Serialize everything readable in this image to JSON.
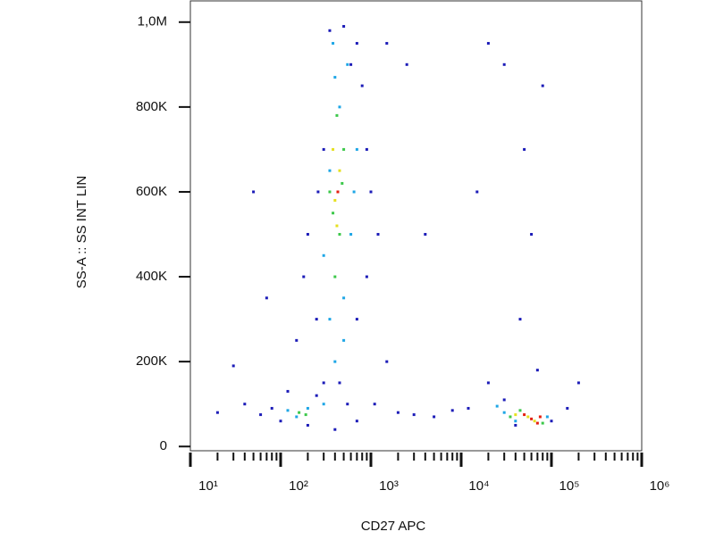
{
  "chart_data": {
    "type": "scatter",
    "xlabel": "CD27 APC",
    "ylabel": "SS-A :: SS INT LIN",
    "xscale": "log",
    "xlim": [
      10,
      1000000
    ],
    "ylim": [
      -10000,
      1050000
    ],
    "xticks": [
      {
        "value": 10,
        "label": "10¹"
      },
      {
        "value": 100,
        "label": "10²"
      },
      {
        "value": 1000,
        "label": "10³"
      },
      {
        "value": 10000,
        "label": "10⁴"
      },
      {
        "value": 100000,
        "label": "10⁵"
      },
      {
        "value": 1000000,
        "label": "10⁶"
      }
    ],
    "yticks": [
      0,
      {
        "value": 200000,
        "label": "200K"
      },
      {
        "value": 400000,
        "label": "400K"
      },
      {
        "value": 600000,
        "label": "600K"
      },
      {
        "value": 800000,
        "label": "800K"
      },
      {
        "value": 1000000,
        "label": "1,0M"
      }
    ],
    "series": [
      {
        "color": "#1c1cb8",
        "x": [
          250,
          300,
          600,
          700,
          350,
          500,
          800,
          900,
          200,
          180,
          1000,
          1200,
          150,
          300,
          700,
          1500,
          900,
          260,
          450,
          550,
          1100,
          2000,
          3000,
          5000,
          8000,
          12000,
          100,
          80,
          60,
          40,
          20,
          120,
          200,
          250,
          20000,
          30000,
          100000,
          150000,
          200000,
          40000,
          70000,
          50000,
          60000,
          30000,
          80000,
          15000,
          45000,
          20000,
          2500,
          4000,
          70,
          50,
          30,
          400,
          700,
          1500
        ],
        "values": [
          300000,
          150000,
          900000,
          950000,
          980000,
          990000,
          850000,
          700000,
          500000,
          400000,
          600000,
          500000,
          250000,
          700000,
          300000,
          200000,
          400000,
          600000,
          150000,
          100000,
          100000,
          80000,
          75000,
          70000,
          85000,
          90000,
          60000,
          90000,
          75000,
          100000,
          80000,
          130000,
          50000,
          120000,
          150000,
          110000,
          60000,
          90000,
          150000,
          50000,
          180000,
          700000,
          500000,
          900000,
          850000,
          600000,
          300000,
          950000,
          900000,
          500000,
          350000,
          600000,
          190000,
          40000,
          60000,
          950000
        ]
      },
      {
        "color": "#1ea6e6",
        "x": [
          350,
          400,
          500,
          300,
          600,
          450,
          550,
          400,
          350,
          700,
          150,
          200,
          120,
          30000,
          40000,
          90000,
          25000,
          300,
          500,
          650,
          380
        ],
        "values": [
          300000,
          200000,
          350000,
          450000,
          500000,
          800000,
          900000,
          870000,
          650000,
          700000,
          70000,
          90000,
          85000,
          80000,
          60000,
          70000,
          95000,
          100000,
          250000,
          600000,
          950000
        ]
      },
      {
        "color": "#3cc84a",
        "x": [
          400,
          450,
          380,
          500,
          420,
          350,
          160,
          190,
          35000,
          45000,
          80000,
          480
        ],
        "values": [
          400000,
          500000,
          550000,
          700000,
          780000,
          600000,
          80000,
          75000,
          70000,
          85000,
          55000,
          620000
        ]
      },
      {
        "color": "#e6e020",
        "x": [
          400,
          450,
          420,
          380,
          55000,
          65000,
          40000
        ],
        "values": [
          580000,
          650000,
          520000,
          700000,
          70000,
          60000,
          75000
        ]
      },
      {
        "color": "#e42010",
        "x": [
          430,
          60000,
          70000,
          50000,
          75000
        ],
        "values": [
          600000,
          65000,
          55000,
          75000,
          70000
        ]
      }
    ]
  }
}
